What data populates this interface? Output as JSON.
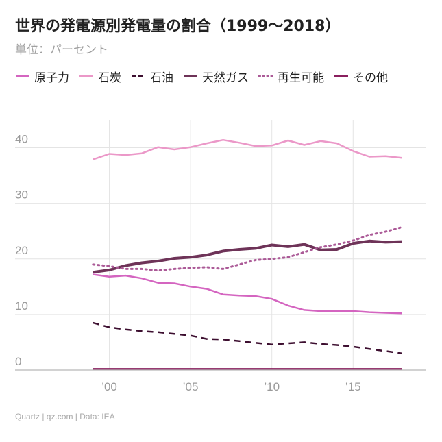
{
  "title": "世界の発電源別発電量の割合（1999〜2018）",
  "subtitle": "単位：パーセント",
  "source": "Quartz | qz.com | Data: IEA",
  "chart_data": {
    "type": "line",
    "x": [
      1999,
      2000,
      2001,
      2002,
      2003,
      2004,
      2005,
      2006,
      2007,
      2008,
      2009,
      2010,
      2011,
      2012,
      2013,
      2014,
      2015,
      2016,
      2017,
      2018
    ],
    "xlim": [
      1994.2,
      2019.5
    ],
    "ylim": [
      0,
      45
    ],
    "xticks": [
      {
        "value": 2000,
        "label": "’00"
      },
      {
        "value": 2005,
        "label": "’05"
      },
      {
        "value": 2010,
        "label": "’10"
      },
      {
        "value": 2015,
        "label": "’15"
      }
    ],
    "yticks": [
      0,
      10,
      20,
      30,
      40
    ],
    "grid": true,
    "legend_position": "top",
    "series": [
      {
        "name": "原子力",
        "color": "#d465c0",
        "dash": "solid",
        "width": 2.5,
        "values": [
          17.2,
          16.8,
          17.0,
          16.5,
          15.7,
          15.6,
          15.0,
          14.6,
          13.6,
          13.4,
          13.3,
          12.8,
          11.6,
          10.8,
          10.6,
          10.6,
          10.6,
          10.4,
          10.3,
          10.2
        ]
      },
      {
        "name": "石炭",
        "color": "#eb98c8",
        "dash": "solid",
        "width": 2.5,
        "values": [
          37.9,
          38.9,
          38.7,
          39.0,
          40.1,
          39.7,
          40.1,
          40.8,
          41.4,
          40.9,
          40.3,
          40.4,
          41.3,
          40.5,
          41.2,
          40.8,
          39.4,
          38.4,
          38.5,
          38.2
        ]
      },
      {
        "name": "石油",
        "color": "#3d0f30",
        "dash": "dashed",
        "width": 2.5,
        "values": [
          8.5,
          7.7,
          7.3,
          7.0,
          6.8,
          6.5,
          6.2,
          5.6,
          5.5,
          5.2,
          4.9,
          4.6,
          4.8,
          5.0,
          4.7,
          4.5,
          4.2,
          3.8,
          3.4,
          3.0
        ]
      },
      {
        "name": "天然ガス",
        "color": "#6e3358",
        "dash": "solid",
        "width": 4,
        "values": [
          17.6,
          18.0,
          18.8,
          19.3,
          19.6,
          20.1,
          20.3,
          20.7,
          21.4,
          21.7,
          21.9,
          22.5,
          22.2,
          22.6,
          21.6,
          21.7,
          22.8,
          23.2,
          23.0,
          23.1
        ]
      },
      {
        "name": "再生可能",
        "color": "#ab5a97",
        "dash": "dotted",
        "width": 3,
        "values": [
          19.0,
          18.7,
          18.2,
          18.2,
          17.9,
          18.2,
          18.4,
          18.5,
          18.2,
          19.0,
          19.8,
          20.0,
          20.3,
          21.2,
          22.1,
          22.6,
          23.3,
          24.3,
          24.9,
          25.7
        ]
      },
      {
        "name": "その他",
        "color": "#8a1f5e",
        "dash": "solid",
        "width": 2.5,
        "values": [
          0.2,
          0.2,
          0.2,
          0.2,
          0.2,
          0.2,
          0.2,
          0.2,
          0.2,
          0.2,
          0.2,
          0.2,
          0.2,
          0.2,
          0.2,
          0.2,
          0.2,
          0.2,
          0.2,
          0.2
        ]
      }
    ]
  }
}
